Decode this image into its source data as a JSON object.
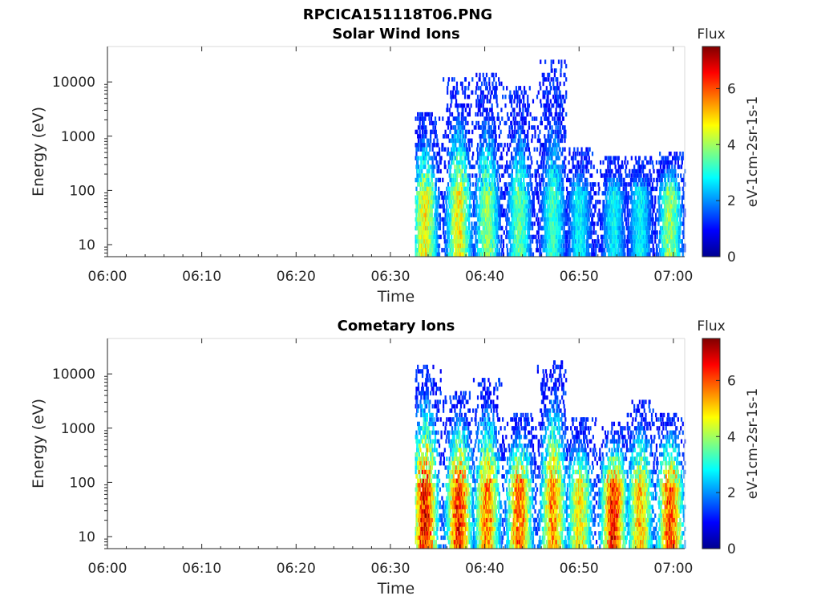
{
  "figure": {
    "title": "RPCICA151118T06.PNG"
  },
  "colormap": {
    "name": "jet",
    "stops": [
      "#00008f",
      "#0000ff",
      "#0080ff",
      "#00ffff",
      "#80ff80",
      "#ffff00",
      "#ff8000",
      "#ff0000",
      "#800000"
    ]
  },
  "chart_data": [
    {
      "type": "heatmap",
      "title": "Solar Wind Ions",
      "xlabel": "Time",
      "ylabel": "Energy (eV)",
      "xticks": [
        "06:00",
        "06:10",
        "06:20",
        "06:30",
        "06:40",
        "06:50",
        "07:00"
      ],
      "xlim_minutes": [
        0,
        61.2
      ],
      "yscale": "log",
      "ylim": [
        6,
        45000
      ],
      "yticks": [
        10,
        100,
        1000,
        10000
      ],
      "ytick_labels": [
        "10",
        "100",
        "1000",
        "10000"
      ],
      "colorbar": {
        "title": "Flux",
        "label": "eV-1cm-2sr-1s-1",
        "range": [
          0,
          7.5
        ],
        "ticks": [
          "0",
          "2",
          "4",
          "6"
        ]
      },
      "legend": "none",
      "grid": false,
      "bursts": [
        {
          "t_minutes": 33.6,
          "flux_low_energy": 5.0,
          "max_energy_eV": 3000
        },
        {
          "t_minutes": 37.2,
          "flux_low_energy": 5.0,
          "max_energy_eV": 12000
        },
        {
          "t_minutes": 40.2,
          "flux_low_energy": 4.2,
          "max_energy_eV": 14000
        },
        {
          "t_minutes": 43.6,
          "flux_low_energy": 3.8,
          "max_energy_eV": 9000
        },
        {
          "t_minutes": 47.2,
          "flux_low_energy": 3.5,
          "max_energy_eV": 25000
        },
        {
          "t_minutes": 50.0,
          "flux_low_energy": 3.0,
          "max_energy_eV": 600
        },
        {
          "t_minutes": 53.6,
          "flux_low_energy": 3.0,
          "max_energy_eV": 450
        },
        {
          "t_minutes": 56.4,
          "flux_low_energy": 3.0,
          "max_energy_eV": 450
        },
        {
          "t_minutes": 59.6,
          "flux_low_energy": 4.2,
          "max_energy_eV": 500
        }
      ]
    },
    {
      "type": "heatmap",
      "title": "Cometary Ions",
      "xlabel": "Time",
      "ylabel": "Energy (eV)",
      "xticks": [
        "06:00",
        "06:10",
        "06:20",
        "06:30",
        "06:40",
        "06:50",
        "07:00"
      ],
      "xlim_minutes": [
        0,
        61.2
      ],
      "yscale": "log",
      "ylim": [
        6,
        45000
      ],
      "yticks": [
        10,
        100,
        1000,
        10000
      ],
      "ytick_labels": [
        "10",
        "100",
        "1000",
        "10000"
      ],
      "colorbar": {
        "title": "Flux",
        "label": "eV-1cm-2sr-1s-1",
        "range": [
          0,
          7.5
        ],
        "ticks": [
          "0",
          "2",
          "4",
          "6"
        ]
      },
      "legend": "none",
      "grid": false,
      "bursts": [
        {
          "t_minutes": 33.6,
          "flux_low_energy": 7.0,
          "max_energy_eV": 14000
        },
        {
          "t_minutes": 37.2,
          "flux_low_energy": 6.8,
          "max_energy_eV": 5000
        },
        {
          "t_minutes": 40.2,
          "flux_low_energy": 6.0,
          "max_energy_eV": 9000
        },
        {
          "t_minutes": 43.6,
          "flux_low_energy": 6.3,
          "max_energy_eV": 2000
        },
        {
          "t_minutes": 47.2,
          "flux_low_energy": 6.0,
          "max_energy_eV": 17000
        },
        {
          "t_minutes": 50.0,
          "flux_low_energy": 5.2,
          "max_energy_eV": 1500
        },
        {
          "t_minutes": 53.6,
          "flux_low_energy": 6.8,
          "max_energy_eV": 1200
        },
        {
          "t_minutes": 56.4,
          "flux_low_energy": 5.5,
          "max_energy_eV": 3300
        },
        {
          "t_minutes": 59.6,
          "flux_low_energy": 6.5,
          "max_energy_eV": 2000
        }
      ]
    }
  ]
}
